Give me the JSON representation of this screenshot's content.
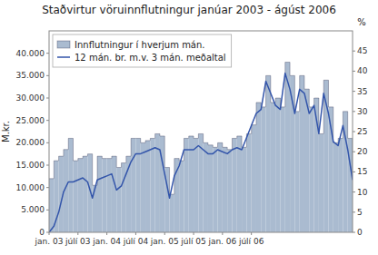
{
  "chart_data": {
    "type": "area",
    "title": "Staðvirtur vöruinnflutningur janúar 2003 - ágúst 2006",
    "ylabel": "M.kr.",
    "y2label": "%",
    "categories": [
      "jan. 03",
      null,
      null,
      null,
      null,
      null,
      "júlí 03",
      null,
      null,
      null,
      null,
      null,
      "jan. 04",
      null,
      null,
      null,
      null,
      null,
      "júlí 04",
      null,
      null,
      null,
      null,
      null,
      "jan. 05",
      null,
      null,
      null,
      null,
      null,
      "júlí 05",
      null,
      null,
      null,
      null,
      null,
      "jan. 06",
      null,
      null,
      null,
      null,
      null,
      "júlí 06",
      null,
      null,
      null,
      null,
      null,
      null,
      null,
      null,
      null,
      null,
      null,
      null,
      null,
      null,
      null,
      null,
      null,
      null,
      null,
      null,
      null
    ],
    "series": [
      {
        "name": "Innflutningur í hverjum mán.",
        "type": "area",
        "line_style": "step",
        "color": "#AABBD0",
        "values": [
          12000,
          16000,
          17000,
          18500,
          21000,
          16000,
          16500,
          17000,
          17500,
          10500,
          17000,
          16500,
          16500,
          17000,
          14500,
          15500,
          17000,
          21000,
          21000,
          20000,
          20500,
          21000,
          22000,
          21500,
          14500,
          8500,
          16500,
          16000,
          21000,
          21500,
          21000,
          22000,
          20000,
          19500,
          19000,
          20000,
          19000,
          18500,
          21000,
          21500,
          19000,
          22000,
          24000,
          29000,
          28000,
          35000,
          29000,
          30000,
          28000,
          38000,
          35000,
          27000,
          35000,
          32000,
          28000,
          30000,
          22000,
          34000,
          28000,
          20000,
          21000,
          27000,
          21000,
          12000
        ]
      },
      {
        "name": "12 mán. br. m.v. 3 mán. meðaltal",
        "type": "line",
        "axis": "y2",
        "color": "#3355AA",
        "values": [
          0.0,
          1.5,
          5.0,
          10.0,
          12.5,
          12.5,
          13.0,
          13.5,
          12.5,
          8.5,
          13.0,
          13.5,
          14.0,
          14.5,
          10.5,
          11.5,
          14.5,
          17.5,
          19.5,
          19.5,
          20.0,
          20.5,
          21.0,
          20.5,
          14.5,
          8.5,
          14.0,
          16.5,
          20.5,
          20.5,
          20.5,
          21.5,
          20.5,
          19.5,
          19.5,
          20.5,
          20.0,
          19.5,
          20.5,
          21.0,
          20.5,
          23.5,
          26.5,
          29.5,
          30.5,
          37.5,
          34.5,
          31.5,
          30.5,
          39.5,
          35.5,
          29.5,
          35.5,
          34.5,
          29.5,
          31.5,
          24.5,
          34.5,
          29.5,
          22.5,
          21.5,
          26.5,
          20.5,
          13.0
        ]
      }
    ],
    "ylim": [
      0,
      45000
    ],
    "yticks": [
      0,
      {
        "value": 5000,
        "label": "5.000"
      },
      {
        "value": 10000,
        "label": "10.000"
      },
      {
        "value": 15000,
        "label": "15.000"
      },
      {
        "value": 20000,
        "label": "20.000"
      },
      {
        "value": 25000,
        "label": "25.000"
      },
      {
        "value": 30000,
        "label": "30.000"
      },
      {
        "value": 35000,
        "label": "35.000"
      },
      {
        "value": 40000,
        "label": "40.000"
      }
    ],
    "y2lim": [
      0,
      50
    ],
    "y2ticks": [
      0,
      5,
      10,
      15,
      20,
      25,
      30,
      35,
      40,
      45
    ],
    "grid": false,
    "legend": "top-left"
  }
}
